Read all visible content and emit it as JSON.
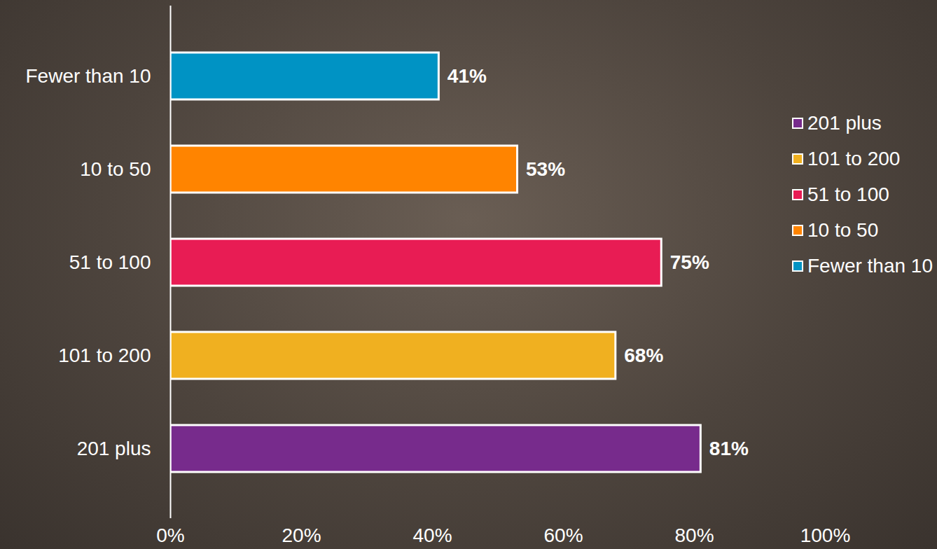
{
  "chart_data": {
    "type": "bar",
    "orientation": "horizontal",
    "categories": [
      "Fewer than 10",
      "10 to 50",
      "51 to 100",
      "101 to 200",
      "201 plus"
    ],
    "values": [
      41,
      53,
      75,
      68,
      81
    ],
    "value_labels": [
      "41%",
      "53%",
      "75%",
      "68%",
      "81%"
    ],
    "colors": [
      "#0093c4",
      "#ff8400",
      "#e81c54",
      "#f0b020",
      "#772b8c"
    ],
    "xlim": [
      0,
      100
    ],
    "xticks": [
      {
        "value": 0,
        "label": "0%"
      },
      {
        "value": 20,
        "label": "20%"
      },
      {
        "value": 40,
        "label": "40%"
      },
      {
        "value": 60,
        "label": "60%"
      },
      {
        "value": 80,
        "label": "80%"
      },
      {
        "value": 100,
        "label": "100%"
      }
    ],
    "grid": false,
    "data_labels": true,
    "legend": "right"
  }
}
